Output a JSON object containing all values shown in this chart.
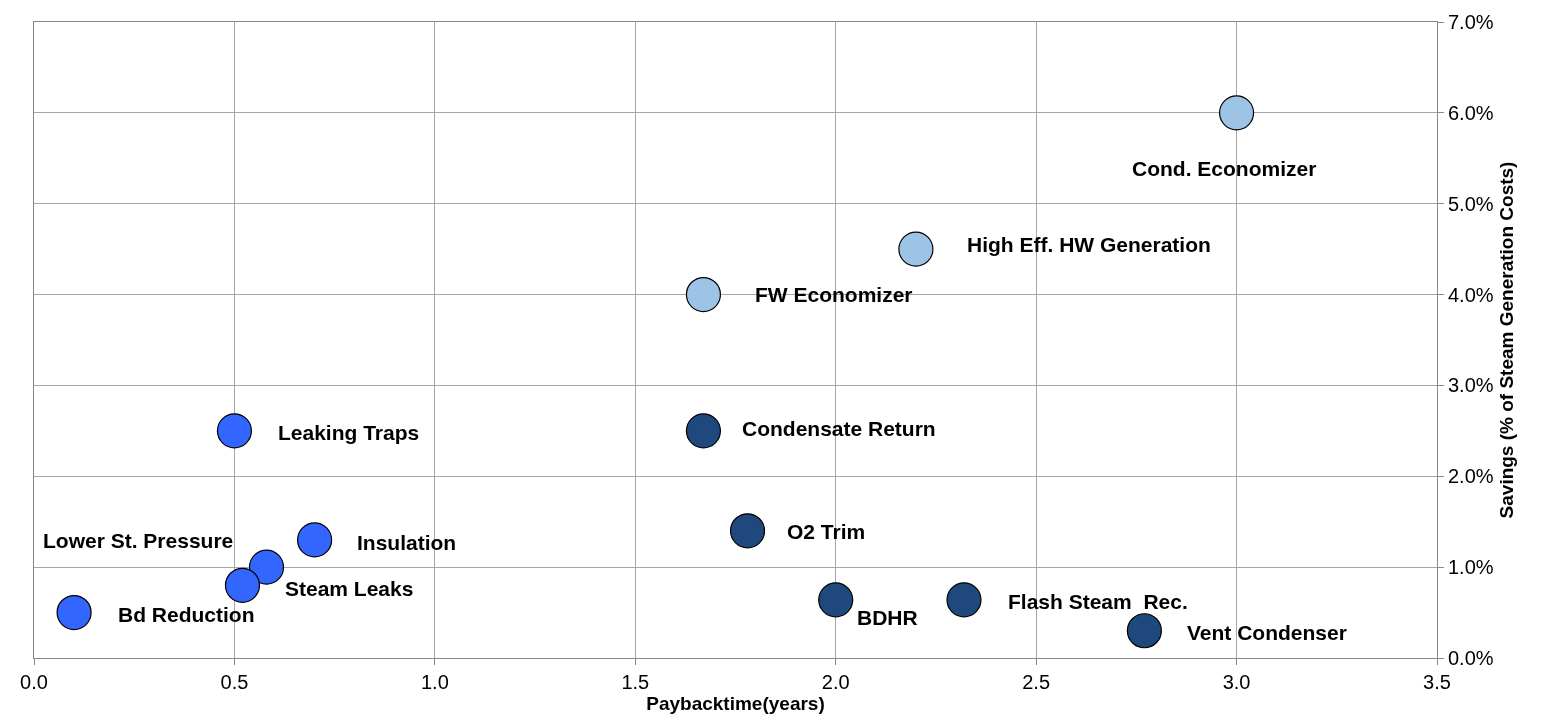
{
  "chart_data": {
    "type": "scatter",
    "xlabel": "Paybacktime(years)",
    "ylabel": "Savings (% of Steam Generation Costs)",
    "series": [
      {
        "color": "#9dc3e6",
        "x": [
          3.0,
          2.2,
          1.67
        ],
        "values": [
          6.0,
          4.5,
          4.0
        ]
      },
      {
        "color": "#3366ff",
        "x": [
          0.5,
          0.7,
          0.58,
          0.52,
          0.1
        ],
        "values": [
          2.5,
          1.3,
          1.0,
          0.8,
          0.5
        ]
      },
      {
        "color": "#1f497d",
        "x": [
          1.67,
          1.78,
          2.0,
          2.32,
          2.77
        ],
        "values": [
          2.5,
          1.4,
          0.64,
          0.64,
          0.3
        ]
      }
    ],
    "annotations": [
      {
        "text": "Cond. Economizer",
        "x": 3.0,
        "y": 6.0
      },
      {
        "text": "High Eff. HW Generation",
        "x": 2.2,
        "y": 4.5
      },
      {
        "text": "FW Economizer",
        "x": 1.67,
        "y": 4.0
      },
      {
        "text": "Leaking Traps",
        "x": 0.5,
        "y": 2.5
      },
      {
        "text": "Condensate Return",
        "x": 1.67,
        "y": 2.5
      },
      {
        "text": "O2 Trim",
        "x": 1.78,
        "y": 1.4
      },
      {
        "text": "Insulation",
        "x": 0.7,
        "y": 1.3
      },
      {
        "text": "Lower St. Pressure",
        "x": 0.52,
        "y": 0.8
      },
      {
        "text": "Steam Leaks",
        "x": 0.58,
        "y": 1.0
      },
      {
        "text": "Bd Reduction",
        "x": 0.1,
        "y": 0.5
      },
      {
        "text": "BDHR",
        "x": 2.0,
        "y": 0.64
      },
      {
        "text": "Flash Steam  Rec.",
        "x": 2.32,
        "y": 0.64
      },
      {
        "text": "Vent Condenser",
        "x": 2.77,
        "y": 0.3
      }
    ],
    "xlim": [
      0,
      3.5
    ],
    "xticks": [
      {
        "value": 0,
        "label": "0.0"
      },
      {
        "value": 0.5,
        "label": "0.5"
      },
      {
        "value": 1,
        "label": "1.0"
      },
      {
        "value": 1.5,
        "label": "1.5"
      },
      {
        "value": 2,
        "label": "2.0"
      },
      {
        "value": 2.5,
        "label": "2.5"
      },
      {
        "value": 3,
        "label": "3.0"
      },
      {
        "value": 3.5,
        "label": "3.5"
      }
    ],
    "ylim": [
      0,
      7
    ],
    "yticks": [
      {
        "value": 0,
        "label": "0.0%"
      },
      {
        "value": 1,
        "label": "1.0%"
      },
      {
        "value": 2,
        "label": "2.0%"
      },
      {
        "value": 3,
        "label": "3.0%"
      },
      {
        "value": 4,
        "label": "4.0%"
      },
      {
        "value": 5,
        "label": "5.0%"
      },
      {
        "value": 6,
        "label": "6.0%"
      },
      {
        "value": 7,
        "label": "7.0%"
      }
    ],
    "grid": true,
    "marker": "circle"
  }
}
